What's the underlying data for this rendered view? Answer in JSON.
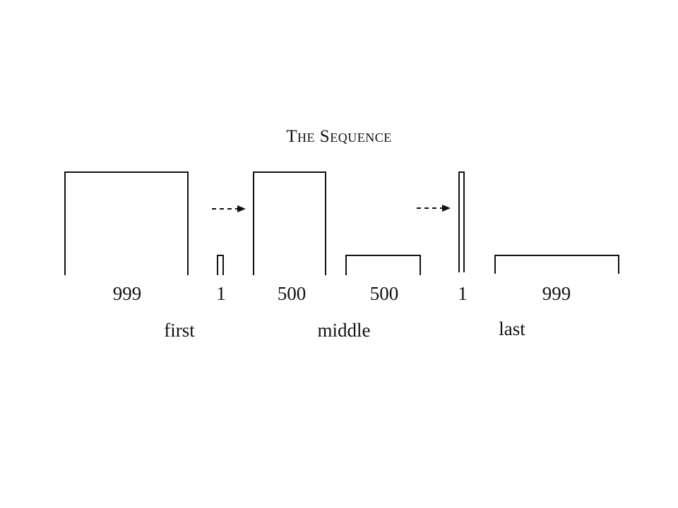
{
  "title": "The Sequence",
  "labels": {
    "first": "first",
    "middle": "middle",
    "last": "last"
  },
  "numbers": [
    "999",
    "1",
    "500",
    "500",
    "1",
    "999"
  ]
}
